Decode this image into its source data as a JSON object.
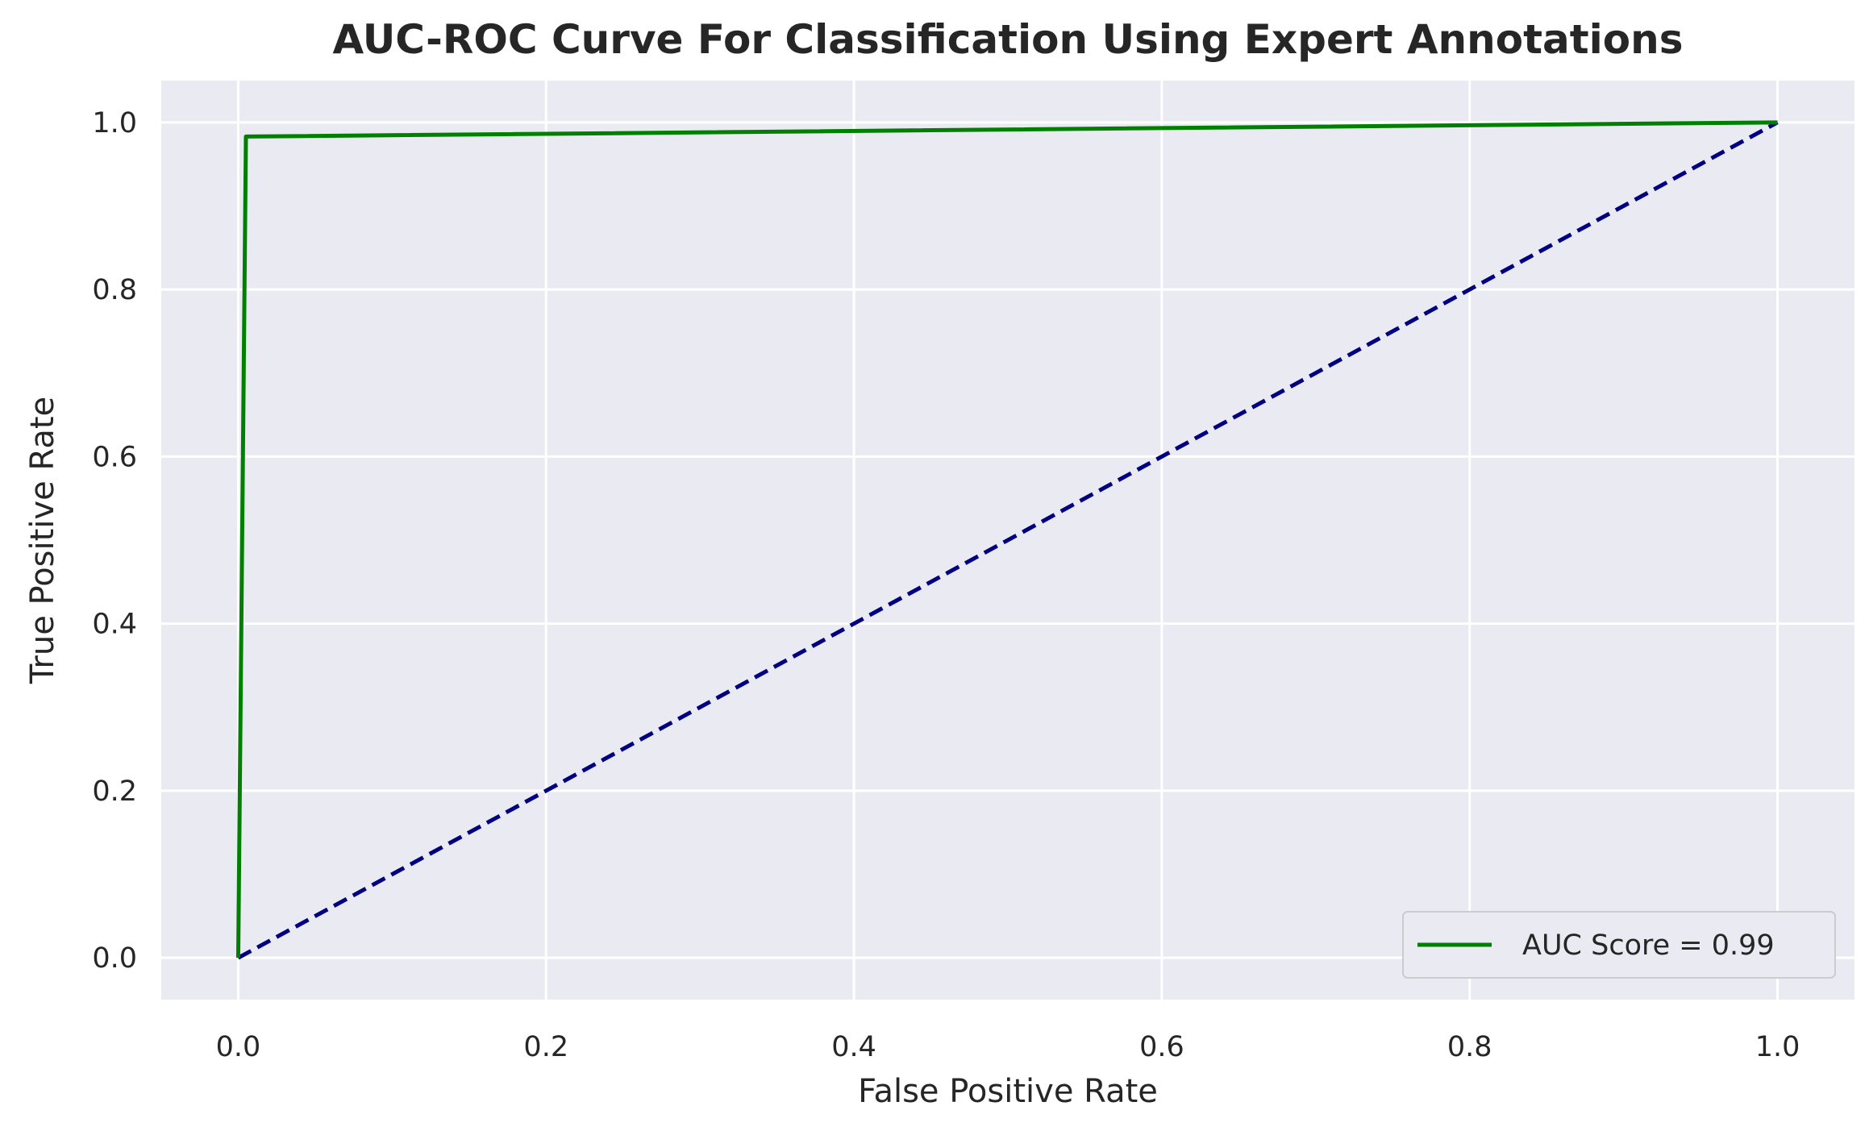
{
  "chart_data": {
    "type": "line",
    "title": "AUC-ROC Curve For Classification Using Expert Annotations",
    "xlabel": "False Positive Rate",
    "ylabel": "True Positive Rate",
    "xlim": [
      -0.05,
      1.05
    ],
    "ylim": [
      -0.05,
      1.05
    ],
    "xticks": [
      0.0,
      0.2,
      0.4,
      0.6,
      0.8,
      1.0
    ],
    "yticks": [
      0.0,
      0.2,
      0.4,
      0.6,
      0.8,
      1.0
    ],
    "xtick_labels": [
      "0.0",
      "0.2",
      "0.4",
      "0.6",
      "0.8",
      "1.0"
    ],
    "ytick_labels": [
      "0.0",
      "0.2",
      "0.4",
      "0.6",
      "0.8",
      "1.0"
    ],
    "grid": true,
    "legend_position": "bottom-right",
    "series": [
      {
        "name": "AUC Score = 0.99",
        "color": "#008000",
        "style": "solid",
        "x": [
          0.0,
          0.005,
          1.0
        ],
        "y": [
          0.0,
          0.983,
          1.0
        ]
      },
      {
        "color": "#000080",
        "style": "dashed",
        "x": [
          0.0,
          1.0
        ],
        "y": [
          0.0,
          1.0
        ]
      }
    ]
  },
  "colors": {
    "plot_background": "#eaeaf2",
    "grid": "#ffffff"
  }
}
